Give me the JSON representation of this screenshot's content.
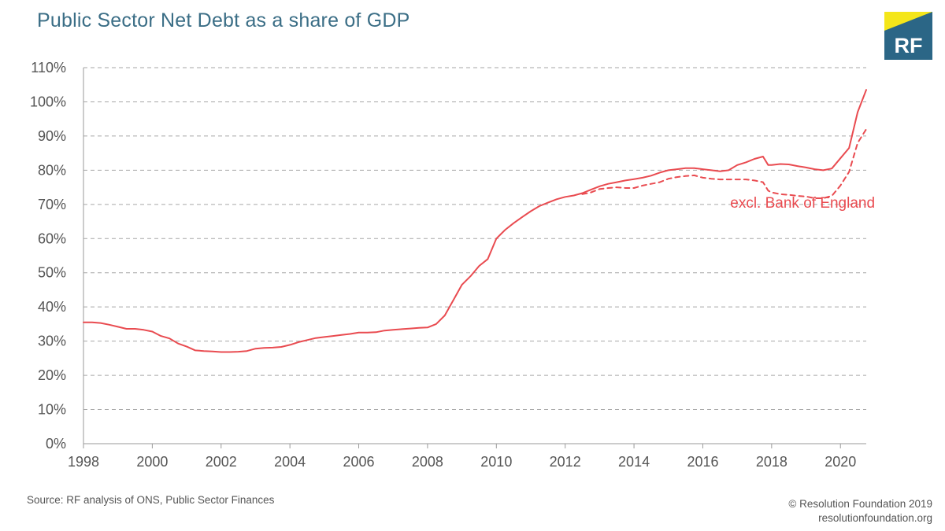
{
  "title": "Public Sector Net Debt as a share of GDP",
  "logo": {
    "text": "RF",
    "bg_color": "#2b6686",
    "accent_color": "#f4e61a"
  },
  "footer": {
    "source": "Source: RF analysis of ONS, Public Sector Finances",
    "credit_line1": "© Resolution Foundation 2019",
    "credit_line2": "resolutionfoundation.org"
  },
  "chart_data": {
    "type": "line",
    "title": "Public Sector Net Debt as a share of GDP",
    "xlim": [
      1998,
      2020.75
    ],
    "ylim": [
      0,
      110
    ],
    "y_unit": "%",
    "x_ticks": [
      1998,
      2000,
      2002,
      2004,
      2006,
      2008,
      2010,
      2012,
      2014,
      2016,
      2018,
      2020
    ],
    "y_ticks": [
      0,
      10,
      20,
      30,
      40,
      50,
      60,
      70,
      80,
      90,
      100,
      110
    ],
    "grid": "horizontal dashed",
    "line_color": "#e94b50",
    "series": [
      {
        "name": "",
        "style": "solid",
        "points": [
          [
            1998.0,
            35.5
          ],
          [
            1998.25,
            35.5
          ],
          [
            1998.5,
            35.3
          ],
          [
            1998.75,
            34.8
          ],
          [
            1999.0,
            34.2
          ],
          [
            1999.25,
            33.6
          ],
          [
            1999.5,
            33.6
          ],
          [
            1999.75,
            33.3
          ],
          [
            2000.0,
            32.8
          ],
          [
            2000.25,
            31.5
          ],
          [
            2000.5,
            30.8
          ],
          [
            2000.75,
            29.3
          ],
          [
            2001.0,
            28.4
          ],
          [
            2001.25,
            27.3
          ],
          [
            2001.5,
            27.1
          ],
          [
            2001.75,
            27.0
          ],
          [
            2002.0,
            26.8
          ],
          [
            2002.25,
            26.8
          ],
          [
            2002.5,
            26.9
          ],
          [
            2002.75,
            27.1
          ],
          [
            2003.0,
            27.8
          ],
          [
            2003.25,
            28.0
          ],
          [
            2003.5,
            28.1
          ],
          [
            2003.75,
            28.3
          ],
          [
            2004.0,
            28.9
          ],
          [
            2004.25,
            29.7
          ],
          [
            2004.5,
            30.3
          ],
          [
            2004.75,
            30.9
          ],
          [
            2005.0,
            31.2
          ],
          [
            2005.25,
            31.5
          ],
          [
            2005.5,
            31.8
          ],
          [
            2005.75,
            32.1
          ],
          [
            2006.0,
            32.5
          ],
          [
            2006.25,
            32.5
          ],
          [
            2006.5,
            32.6
          ],
          [
            2006.75,
            33.1
          ],
          [
            2007.0,
            33.3
          ],
          [
            2007.25,
            33.5
          ],
          [
            2007.5,
            33.7
          ],
          [
            2007.75,
            33.9
          ],
          [
            2008.0,
            34.0
          ],
          [
            2008.25,
            35.0
          ],
          [
            2008.5,
            37.5
          ],
          [
            2008.75,
            42.0
          ],
          [
            2009.0,
            46.5
          ],
          [
            2009.25,
            49.0
          ],
          [
            2009.5,
            52.0
          ],
          [
            2009.75,
            54.0
          ],
          [
            2010.0,
            60.0
          ],
          [
            2010.25,
            62.5
          ],
          [
            2010.5,
            64.5
          ],
          [
            2010.75,
            66.3
          ],
          [
            2011.0,
            68.0
          ],
          [
            2011.25,
            69.5
          ],
          [
            2011.5,
            70.5
          ],
          [
            2011.75,
            71.5
          ],
          [
            2012.0,
            72.2
          ],
          [
            2012.25,
            72.6
          ],
          [
            2012.5,
            73.3
          ],
          [
            2012.75,
            74.3
          ],
          [
            2013.0,
            75.3
          ],
          [
            2013.25,
            76.0
          ],
          [
            2013.5,
            76.5
          ],
          [
            2013.75,
            77.0
          ],
          [
            2014.0,
            77.4
          ],
          [
            2014.25,
            77.8
          ],
          [
            2014.5,
            78.4
          ],
          [
            2014.75,
            79.3
          ],
          [
            2015.0,
            80.0
          ],
          [
            2015.25,
            80.3
          ],
          [
            2015.5,
            80.6
          ],
          [
            2015.75,
            80.6
          ],
          [
            2016.0,
            80.3
          ],
          [
            2016.25,
            80.0
          ],
          [
            2016.5,
            79.7
          ],
          [
            2016.75,
            80.0
          ],
          [
            2017.0,
            81.5
          ],
          [
            2017.25,
            82.3
          ],
          [
            2017.5,
            83.3
          ],
          [
            2017.75,
            84.0
          ],
          [
            2017.9,
            81.5
          ],
          [
            2018.0,
            81.5
          ],
          [
            2018.25,
            81.8
          ],
          [
            2018.5,
            81.7
          ],
          [
            2018.75,
            81.2
          ],
          [
            2019.0,
            80.8
          ],
          [
            2019.25,
            80.3
          ],
          [
            2019.5,
            80.0
          ],
          [
            2019.75,
            80.5
          ],
          [
            2020.0,
            83.5
          ],
          [
            2020.25,
            86.5
          ],
          [
            2020.5,
            97.0
          ],
          [
            2020.75,
            103.5
          ]
        ]
      },
      {
        "name": "excl. Bank of England",
        "style": "dashed",
        "points": [
          [
            2012.5,
            73.0
          ],
          [
            2012.75,
            73.5
          ],
          [
            2013.0,
            74.5
          ],
          [
            2013.25,
            74.8
          ],
          [
            2013.5,
            75.0
          ],
          [
            2013.75,
            74.8
          ],
          [
            2014.0,
            74.8
          ],
          [
            2014.25,
            75.5
          ],
          [
            2014.5,
            76.0
          ],
          [
            2014.75,
            76.5
          ],
          [
            2015.0,
            77.5
          ],
          [
            2015.25,
            78.0
          ],
          [
            2015.5,
            78.3
          ],
          [
            2015.75,
            78.5
          ],
          [
            2016.0,
            77.8
          ],
          [
            2016.25,
            77.5
          ],
          [
            2016.5,
            77.3
          ],
          [
            2016.75,
            77.3
          ],
          [
            2017.0,
            77.3
          ],
          [
            2017.25,
            77.3
          ],
          [
            2017.5,
            77.0
          ],
          [
            2017.75,
            76.5
          ],
          [
            2017.9,
            74.0
          ],
          [
            2018.0,
            73.5
          ],
          [
            2018.25,
            73.0
          ],
          [
            2018.5,
            72.8
          ],
          [
            2018.75,
            72.5
          ],
          [
            2019.0,
            72.3
          ],
          [
            2019.25,
            71.8
          ],
          [
            2019.5,
            71.8
          ],
          [
            2019.75,
            72.5
          ],
          [
            2020.0,
            75.5
          ],
          [
            2020.25,
            79.5
          ],
          [
            2020.5,
            88.0
          ],
          [
            2020.75,
            92.0
          ]
        ]
      }
    ],
    "annotations": [
      {
        "text": "excl. Bank of England",
        "x": 2018.9,
        "y": 69.0
      }
    ]
  }
}
